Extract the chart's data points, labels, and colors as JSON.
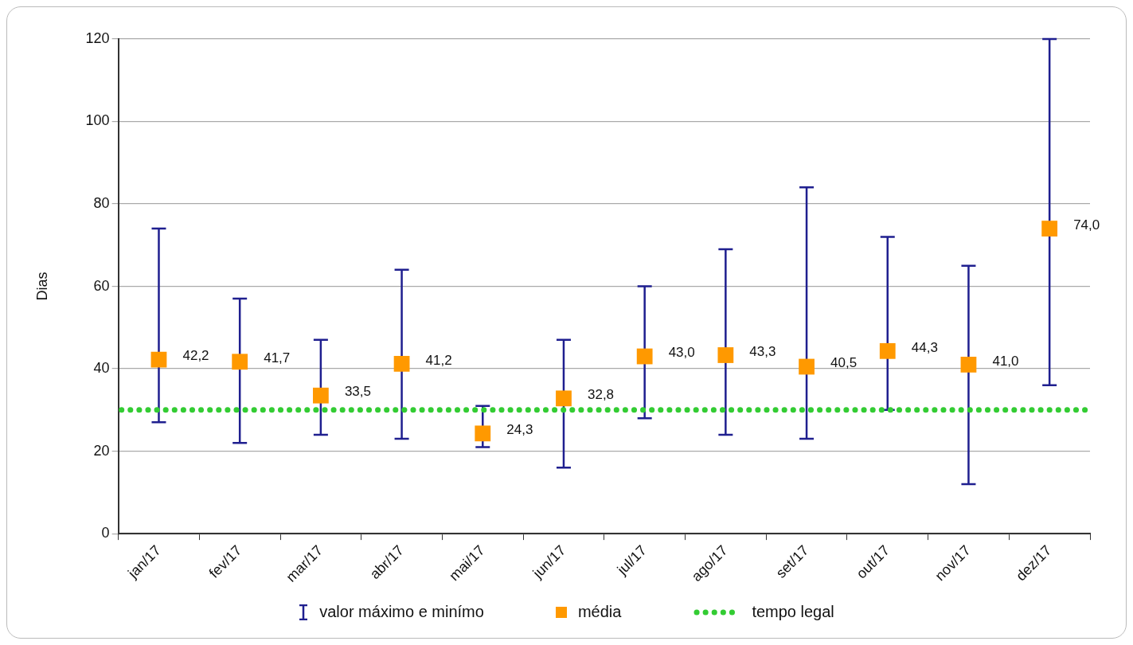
{
  "chart_data": {
    "type": "scatter",
    "ylabel": "Dias",
    "categories": [
      "jan/17",
      "fev/17",
      "mar/17",
      "abr/17",
      "mai/17",
      "jun/17",
      "jul/17",
      "ago/17",
      "set/17",
      "out/17",
      "nov/17",
      "dez/17"
    ],
    "series": [
      {
        "name": "média",
        "color": "#ff9900",
        "values": [
          42.2,
          41.7,
          33.5,
          41.2,
          24.3,
          32.8,
          43.0,
          43.3,
          40.5,
          44.3,
          41.0,
          74.0
        ],
        "errors": [
          [
            27,
            74
          ],
          [
            22,
            57
          ],
          [
            24,
            47
          ],
          [
            23,
            64
          ],
          [
            21,
            31
          ],
          [
            16,
            47
          ],
          [
            28,
            60
          ],
          [
            24,
            69
          ],
          [
            23,
            84
          ],
          [
            30,
            72
          ],
          [
            12,
            65
          ],
          [
            36,
            120
          ]
        ],
        "value_labels": [
          "42,2",
          "41,7",
          "33,5",
          "41,2",
          "24,3",
          "32,8",
          "43,0",
          "43,3",
          "40,5",
          "44,3",
          "41,0",
          "74,0"
        ]
      }
    ],
    "annotations": [
      "valor máximo e minímo"
    ],
    "ref_lines": [
      {
        "axis": "y",
        "value": 30,
        "label": "tempo legal",
        "color": "#33cc33",
        "line_style": "dotted"
      }
    ],
    "ylim": [
      0,
      120
    ],
    "yticks": [
      0,
      20,
      40,
      60,
      80,
      100,
      120
    ],
    "grid": "y",
    "legend": "bottom",
    "marker": "square"
  }
}
